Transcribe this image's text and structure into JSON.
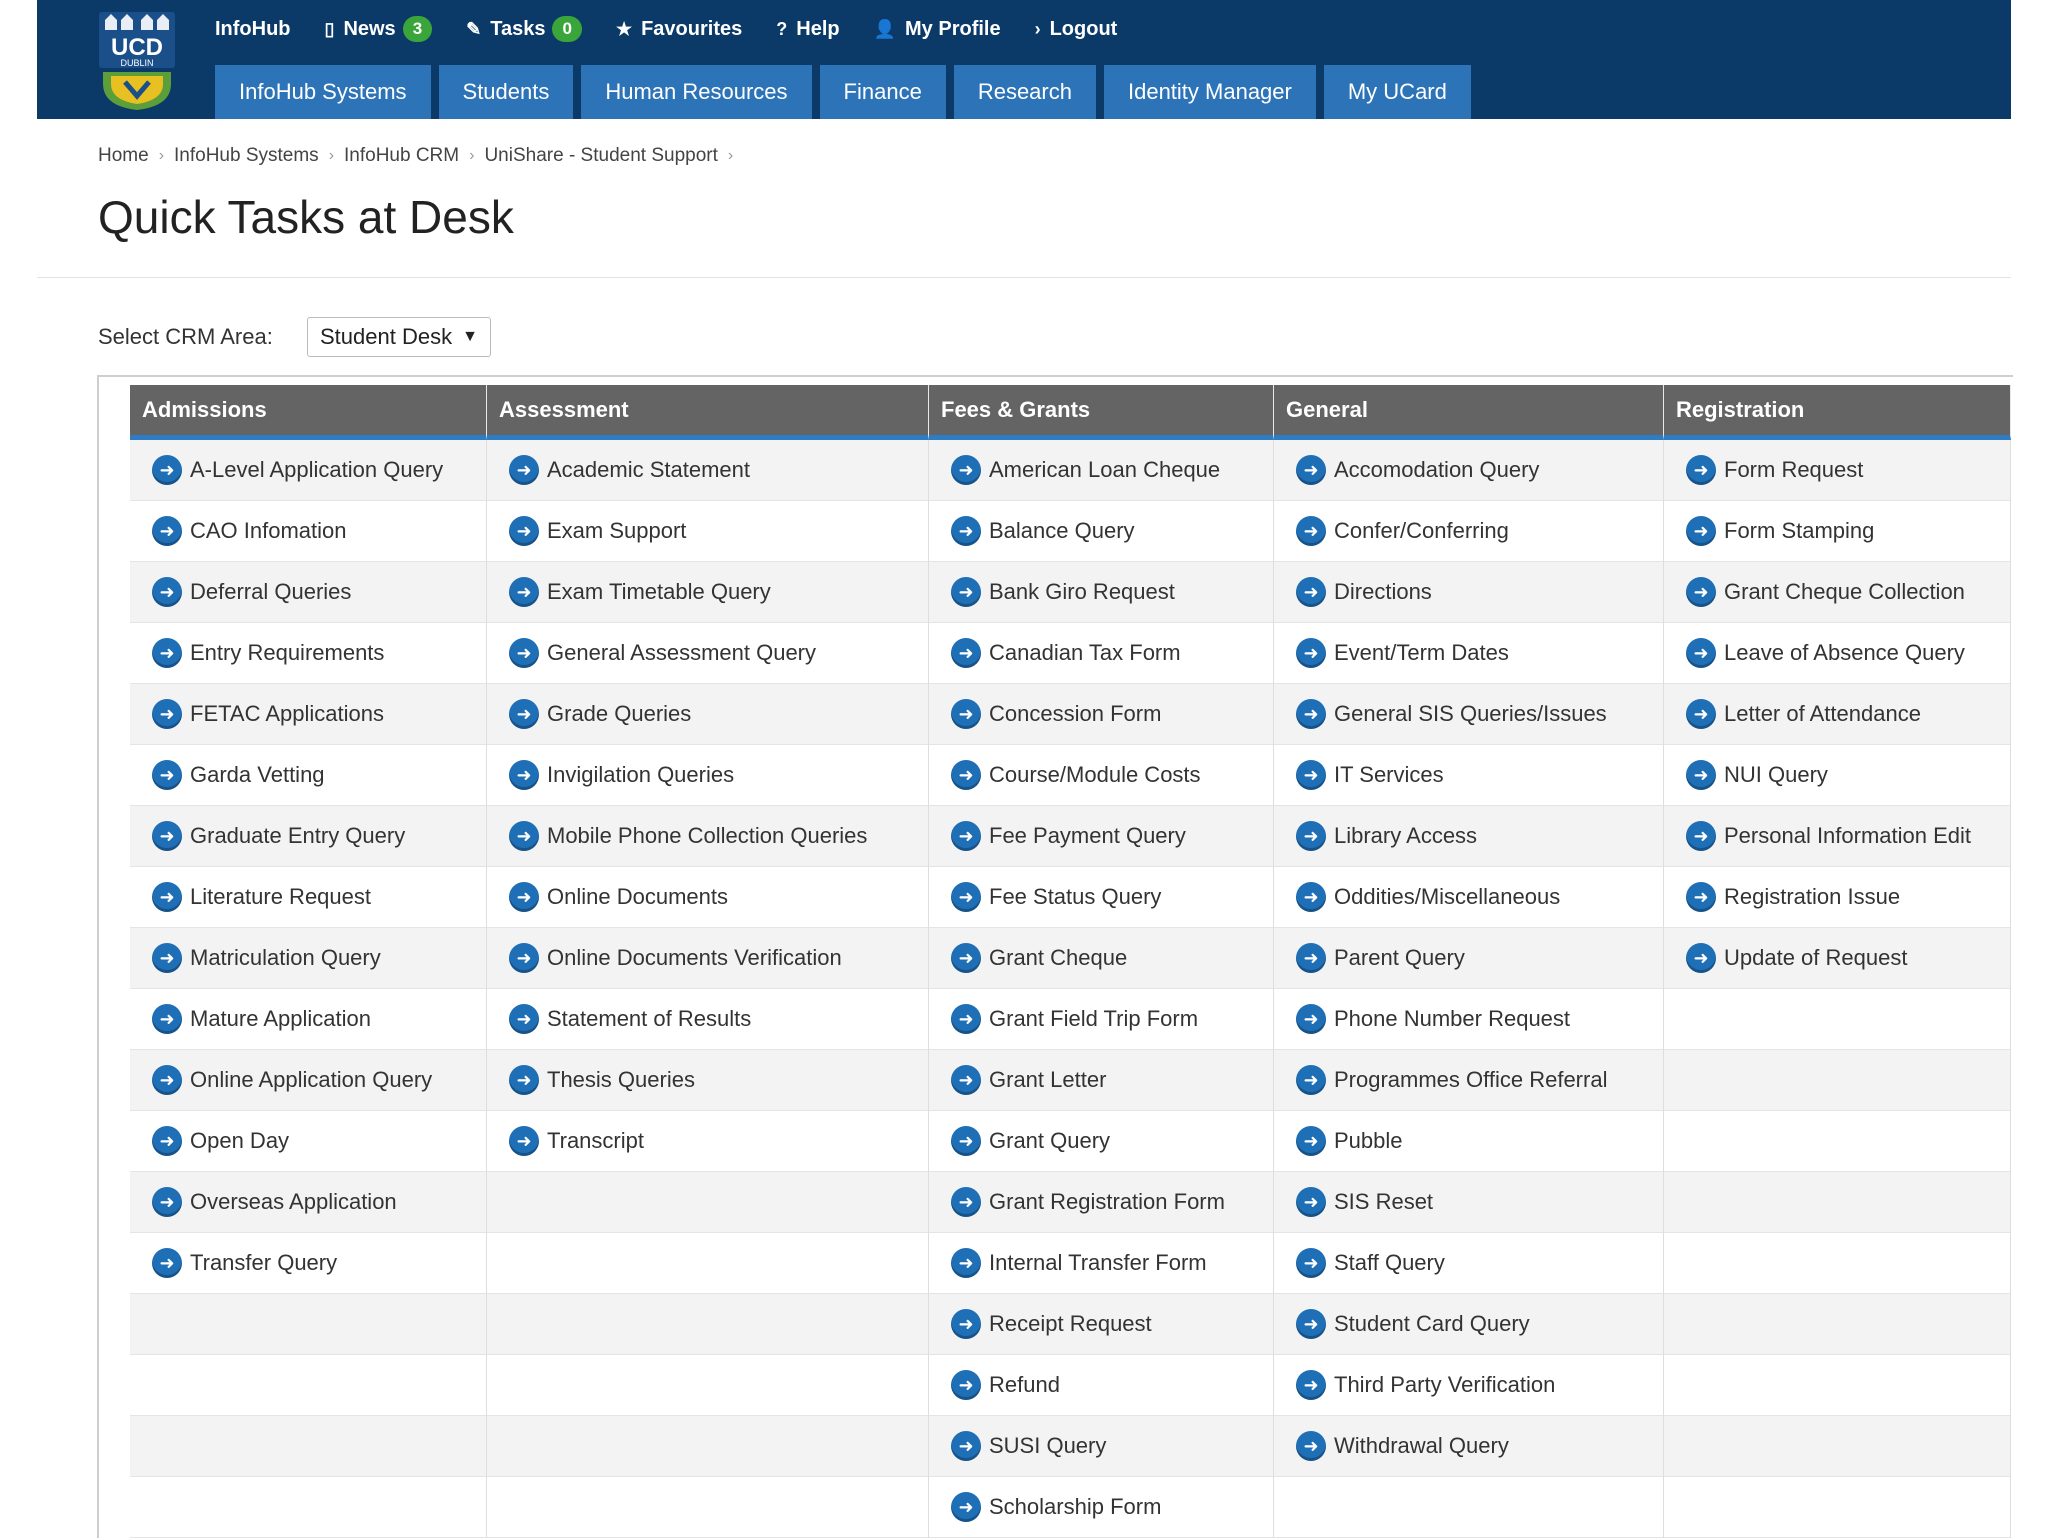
{
  "brand": {
    "logo_text": "UCD",
    "logo_sub": "DUBLIN"
  },
  "topnav": [
    {
      "label": "InfoHub",
      "icon": "",
      "badge": ""
    },
    {
      "label": "News",
      "icon": "document-icon",
      "badge": "3"
    },
    {
      "label": "Tasks",
      "icon": "pencil-icon",
      "badge": "0"
    },
    {
      "label": "Favourites",
      "icon": "star-icon",
      "badge": ""
    },
    {
      "label": "Help",
      "icon": "question-icon",
      "badge": ""
    },
    {
      "label": "My Profile",
      "icon": "user-icon",
      "badge": ""
    },
    {
      "label": "Logout",
      "icon": "chevron-right-icon",
      "badge": ""
    }
  ],
  "tabs": [
    "InfoHub Systems",
    "Students",
    "Human Resources",
    "Finance",
    "Research",
    "Identity Manager",
    "My UCard"
  ],
  "breadcrumb": [
    "Home",
    "InfoHub Systems",
    "InfoHub CRM",
    "UniShare - Student Support"
  ],
  "page_title": "Quick Tasks at Desk",
  "crm": {
    "label": "Select CRM Area:",
    "selected": "Student Desk"
  },
  "colors": {
    "header_bg": "#0b3a68",
    "tab_bg": "#2d73b8",
    "table_header_bg": "#646464",
    "accent": "#2e7cc4",
    "badge": "#3aa53a"
  },
  "columns": [
    {
      "title": "Admissions",
      "items": [
        "A-Level Application Query",
        "CAO Infomation",
        "Deferral Queries",
        "Entry Requirements",
        "FETAC Applications",
        "Garda Vetting",
        "Graduate Entry Query",
        "Literature Request",
        "Matriculation Query",
        "Mature Application",
        "Online Application Query",
        "Open Day",
        "Overseas Application",
        "Transfer Query"
      ]
    },
    {
      "title": "Assessment",
      "items": [
        "Academic Statement",
        "Exam Support",
        "Exam Timetable Query",
        "General Assessment Query",
        "Grade Queries",
        "Invigilation Queries",
        "Mobile Phone Collection Queries",
        "Online Documents",
        "Online Documents Verification",
        "Statement of Results",
        "Thesis Queries",
        "Transcript"
      ]
    },
    {
      "title": "Fees & Grants",
      "items": [
        "American Loan Cheque",
        "Balance Query",
        "Bank Giro Request",
        "Canadian Tax Form",
        "Concession Form",
        "Course/Module Costs",
        "Fee Payment Query",
        "Fee Status Query",
        "Grant Cheque",
        "Grant Field Trip Form",
        "Grant Letter",
        "Grant Query",
        "Grant Registration Form",
        "Internal Transfer Form",
        "Receipt Request",
        "Refund",
        "SUSI Query",
        "Scholarship Form"
      ]
    },
    {
      "title": "General",
      "items": [
        "Accomodation Query",
        "Confer/Conferring",
        "Directions",
        "Event/Term Dates",
        "General SIS Queries/Issues",
        "IT Services",
        "Library Access",
        "Oddities/Miscellaneous",
        "Parent Query",
        "Phone Number Request",
        "Programmes Office Referral",
        "Pubble",
        "SIS Reset",
        "Staff Query",
        "Student Card Query",
        "Third Party Verification",
        "Withdrawal Query"
      ]
    },
    {
      "title": "Registration",
      "items": [
        "Form Request",
        "Form Stamping",
        "Grant Cheque Collection",
        "Leave of Absence Query",
        "Letter of Attendance",
        "NUI Query",
        "Personal Information Edit",
        "Registration Issue",
        "Update of Request"
      ]
    }
  ]
}
